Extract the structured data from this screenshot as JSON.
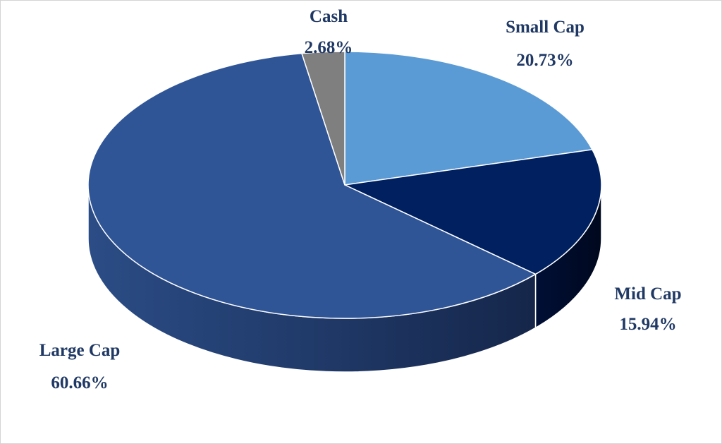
{
  "chart_data": {
    "type": "pie",
    "style": "3d",
    "title": "",
    "legend": "none",
    "slices": [
      {
        "name": "Small Cap",
        "value": 20.73,
        "label": "20.73%",
        "color": "#5b9bd5"
      },
      {
        "name": "Mid Cap",
        "value": 15.94,
        "label": "15.94%",
        "color": "#002060"
      },
      {
        "name": "Large Cap",
        "value": 60.66,
        "label": "60.66%",
        "color": "#2f5597"
      },
      {
        "name": "Cash",
        "value": 2.68,
        "label": "2.68%",
        "color": "#7f7f7f"
      }
    ]
  }
}
